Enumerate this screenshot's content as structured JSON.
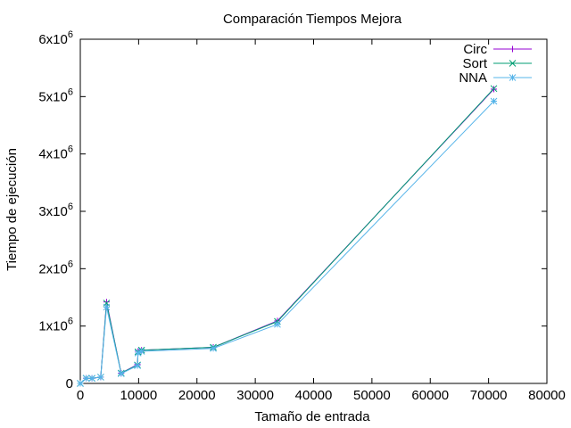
{
  "chart_data": {
    "type": "line",
    "title": "Comparación Tiempos Mejora",
    "xlabel": "Tamaño de entrada",
    "ylabel": "Tiempo de ejecución",
    "xlim": [
      0,
      80000
    ],
    "ylim": [
      0,
      6000000
    ],
    "x_ticks": [
      {
        "value": 0,
        "label": "0"
      },
      {
        "value": 10000,
        "label": "10000"
      },
      {
        "value": 20000,
        "label": "20000"
      },
      {
        "value": 30000,
        "label": "30000"
      },
      {
        "value": 40000,
        "label": "40000"
      },
      {
        "value": 50000,
        "label": "50000"
      },
      {
        "value": 60000,
        "label": "60000"
      },
      {
        "value": 70000,
        "label": "70000"
      },
      {
        "value": 80000,
        "label": "80000"
      }
    ],
    "y_ticks": [
      {
        "value": 0,
        "label": "0",
        "base": "0",
        "exp": ""
      },
      {
        "value": 1000000,
        "label": "1x10^6",
        "base": "1x10",
        "exp": "6"
      },
      {
        "value": 2000000,
        "label": "2x10^6",
        "base": "2x10",
        "exp": "6"
      },
      {
        "value": 3000000,
        "label": "3x10^6",
        "base": "3x10",
        "exp": "6"
      },
      {
        "value": 4000000,
        "label": "4x10^6",
        "base": "4x10",
        "exp": "6"
      },
      {
        "value": 5000000,
        "label": "5x10^6",
        "base": "5x10",
        "exp": "6"
      },
      {
        "value": 6000000,
        "label": "6x10^6",
        "base": "6x10",
        "exp": "6"
      }
    ],
    "grid": false,
    "legend_position": "top-right",
    "series": [
      {
        "name": "Circ",
        "color": "#9400d3",
        "marker": "plus",
        "points": [
          [
            0,
            0
          ],
          [
            1000,
            90000
          ],
          [
            2000,
            90000
          ],
          [
            3500,
            110000
          ],
          [
            4500,
            1420000
          ],
          [
            7000,
            180000
          ],
          [
            9800,
            330000
          ],
          [
            9900,
            560000
          ],
          [
            10500,
            580000
          ],
          [
            22800,
            630000
          ],
          [
            33800,
            1090000
          ],
          [
            70900,
            5130000
          ]
        ]
      },
      {
        "name": "Sort",
        "color": "#009e73",
        "marker": "cross",
        "points": [
          [
            0,
            0
          ],
          [
            1000,
            90000
          ],
          [
            2000,
            90000
          ],
          [
            3500,
            110000
          ],
          [
            4500,
            1400000
          ],
          [
            7000,
            180000
          ],
          [
            9800,
            320000
          ],
          [
            9900,
            550000
          ],
          [
            10500,
            580000
          ],
          [
            22800,
            630000
          ],
          [
            33800,
            1080000
          ],
          [
            70900,
            5140000
          ]
        ]
      },
      {
        "name": "NNA",
        "color": "#56b4e9",
        "marker": "star",
        "points": [
          [
            0,
            0
          ],
          [
            1000,
            90000
          ],
          [
            2000,
            90000
          ],
          [
            3500,
            110000
          ],
          [
            4500,
            1330000
          ],
          [
            7000,
            170000
          ],
          [
            9800,
            310000
          ],
          [
            9900,
            530000
          ],
          [
            10500,
            560000
          ],
          [
            22800,
            610000
          ],
          [
            33800,
            1030000
          ],
          [
            70900,
            4920000
          ]
        ]
      }
    ]
  }
}
